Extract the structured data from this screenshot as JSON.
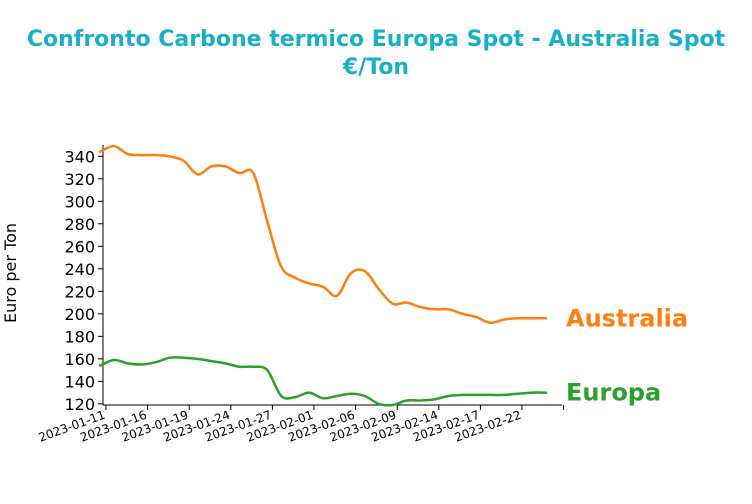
{
  "chart_data": {
    "type": "line",
    "title_line1": "Confronto Carbone termico Europa Spot - Australia Spot",
    "title_line2": "€/Ton",
    "xlabel": "",
    "ylabel": "Euro per Ton",
    "ylim": [
      119,
      350
    ],
    "yticks": [
      120,
      140,
      160,
      180,
      200,
      220,
      240,
      260,
      280,
      300,
      320,
      340
    ],
    "xticks": [
      "2023-01-11",
      "2023-01-16",
      "2023-01-19",
      "2023-01-24",
      "2023-01-27",
      "2023-02-01",
      "2023-02-06",
      "2023-02-09",
      "2023-02-14",
      "2023-02-17",
      "2023-02-22",
      ""
    ],
    "grid": false,
    "series": [
      {
        "name": "Australia",
        "color": "#ff7f0e",
        "values": [
          344,
          349,
          342,
          341,
          341,
          340,
          336,
          324,
          331,
          331,
          325,
          325,
          282,
          242,
          232,
          227,
          224,
          216,
          236,
          238,
          222,
          209,
          210,
          206,
          204,
          204,
          200,
          197,
          192,
          195,
          196,
          196,
          196
        ]
      },
      {
        "name": "Europa",
        "color": "#2ca02c",
        "values": [
          154,
          159,
          156,
          155,
          157,
          161,
          161,
          160,
          158,
          156,
          153,
          153,
          150,
          127,
          126,
          130,
          125,
          127,
          129,
          127,
          120,
          119,
          123,
          123,
          124,
          127,
          128,
          128,
          128,
          128,
          129,
          130,
          130
        ]
      }
    ]
  }
}
